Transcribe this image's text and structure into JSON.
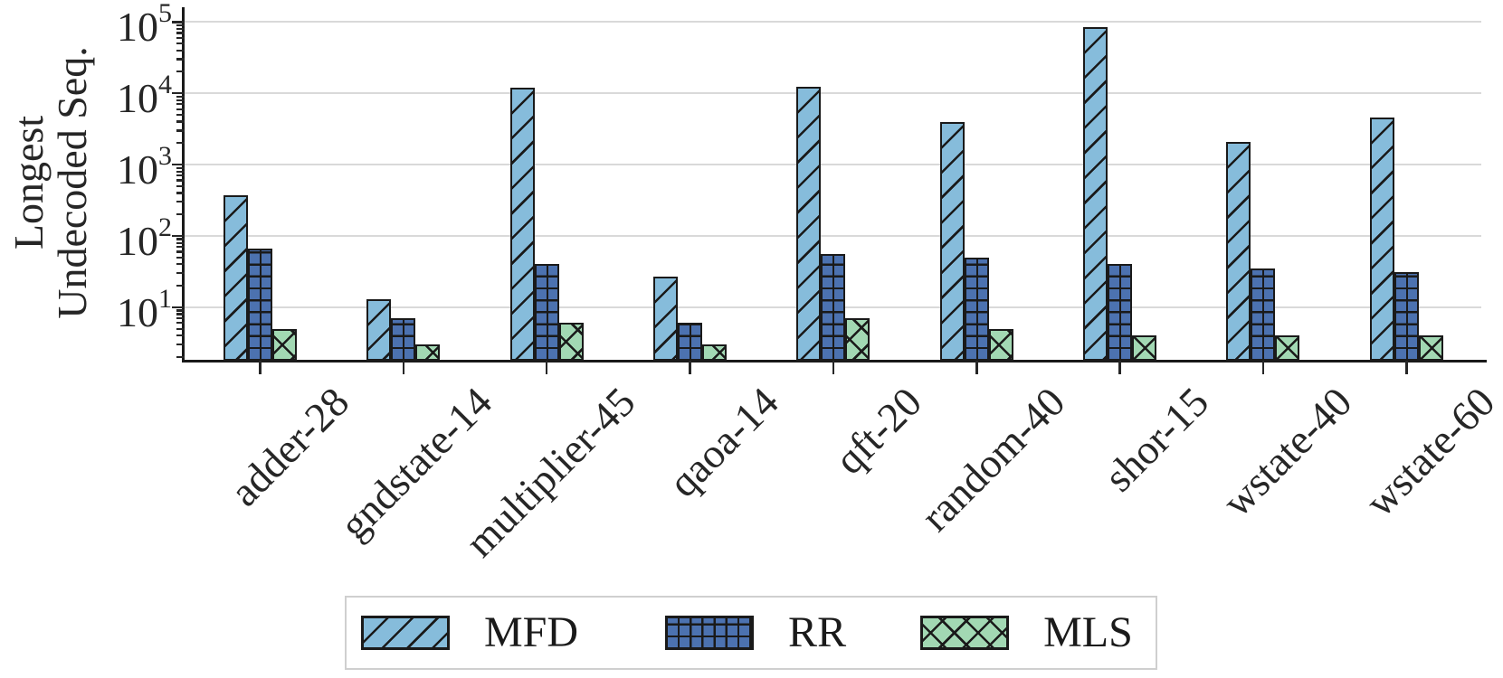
{
  "figure": {
    "background": "#ffffff"
  },
  "chart_data": {
    "type": "bar",
    "title": "",
    "xlabel": "",
    "ylabel": "Longest Undecoded Seq.",
    "ylabel_line1": "Longest",
    "ylabel_line2": "Undecoded Seq.",
    "yscale": "log",
    "ylim": [
      1.78,
      160000
    ],
    "ytick_base": "10",
    "ytick_exponents": [
      1,
      2,
      3,
      4,
      5
    ],
    "grid": "horizontal-major-only",
    "legend_position": "bottom-center",
    "categories": [
      "adder-28",
      "gndstate-14",
      "multiplier-45",
      "qaoa-14",
      "qft-20",
      "random-40",
      "shor-15",
      "wstate-40",
      "wstate-60"
    ],
    "series": [
      {
        "name": "MFD",
        "color": "#86bcdb",
        "hatch": "/",
        "values": [
          370,
          13,
          12000,
          27,
          12500,
          4000,
          85000,
          2100,
          4600
        ]
      },
      {
        "name": "RR",
        "color": "#4c72b0",
        "hatch": "+",
        "values": [
          67,
          7,
          40,
          6,
          56,
          49,
          40,
          35,
          31
        ]
      },
      {
        "name": "MLS",
        "color": "#a2d8b3",
        "hatch": "x",
        "values": [
          5,
          3,
          6,
          3,
          7,
          5,
          4,
          4,
          4
        ]
      }
    ]
  },
  "colors": {
    "bar_edge": "#1a1a1a",
    "gridline": "#d9d9d9",
    "tick": "#262626",
    "text": "#262626",
    "legend_border": "#cfcfcf",
    "mfd_fill": "#86bcdb",
    "rr_fill": "#4c72b0",
    "mls_fill": "#a2d8b3"
  }
}
